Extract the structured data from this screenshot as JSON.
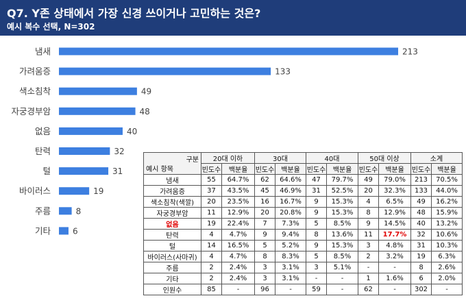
{
  "header": {
    "title": "Q7. Y존 상태에서 가장 신경 쓰이거나 고민하는 것은?",
    "subtitle": "예시 복수 선택, N=302"
  },
  "chart_data": {
    "type": "bar",
    "orientation": "horizontal",
    "categories": [
      "냄새",
      "가려움증",
      "색소침착",
      "자궁경부암",
      "없음",
      "탄력",
      "털",
      "바이러스",
      "주름",
      "기타"
    ],
    "values": [
      213,
      133,
      49,
      48,
      40,
      32,
      31,
      19,
      8,
      6
    ],
    "bar_color": "#3d7fe0",
    "xlim": [
      0,
      213
    ],
    "title": "",
    "xlabel": "",
    "ylabel": ""
  },
  "table": {
    "corner_top": "구분",
    "corner_bottom": "예시 항목",
    "groups": [
      "20대 이하",
      "30대",
      "40대",
      "50대 이상",
      "소계"
    ],
    "subheaders": [
      "빈도수",
      "백분율",
      "빈도수",
      "백분율",
      "빈도수",
      "백분율",
      "빈도수",
      "백분율",
      "빈도수",
      "백분율"
    ],
    "rows": [
      {
        "label": "냄새",
        "cells": [
          "55",
          "64.7%",
          "62",
          "64.6%",
          "47",
          "79.7%",
          "49",
          "79.0%",
          "213",
          "70.5%"
        ]
      },
      {
        "label": "가려움증",
        "cells": [
          "37",
          "43.5%",
          "45",
          "46.9%",
          "31",
          "52.5%",
          "20",
          "32.3%",
          "133",
          "44.0%"
        ]
      },
      {
        "label": "색소침착(색깔)",
        "cells": [
          "20",
          "23.5%",
          "16",
          "16.7%",
          "9",
          "15.3%",
          "4",
          "6.5%",
          "49",
          "16.2%"
        ]
      },
      {
        "label": "자궁경부암",
        "cells": [
          "11",
          "12.9%",
          "20",
          "20.8%",
          "9",
          "15.3%",
          "8",
          "12.9%",
          "48",
          "15.9%"
        ]
      },
      {
        "label": "없음",
        "cells": [
          "19",
          "22.4%",
          "7",
          "7.3%",
          "5",
          "8.5%",
          "9",
          "14.5%",
          "40",
          "13.2%"
        ]
      },
      {
        "label": "탄력",
        "cells": [
          "4",
          "4.7%",
          "9",
          "9.4%",
          "8",
          "13.6%",
          "11",
          "17.7%",
          "32",
          "10.6%"
        ]
      },
      {
        "label": "털",
        "cells": [
          "14",
          "16.5%",
          "5",
          "5.2%",
          "9",
          "15.3%",
          "3",
          "4.8%",
          "31",
          "10.3%"
        ]
      },
      {
        "label": "바이러스(사마귀)",
        "cells": [
          "4",
          "4.7%",
          "8",
          "8.3%",
          "5",
          "8.5%",
          "2",
          "3.2%",
          "19",
          "6.3%"
        ]
      },
      {
        "label": "주름",
        "cells": [
          "2",
          "2.4%",
          "3",
          "3.1%",
          "3",
          "5.1%",
          "-",
          "-",
          "8",
          "2.6%"
        ]
      },
      {
        "label": "기타",
        "cells": [
          "2",
          "2.4%",
          "3",
          "3.1%",
          "-",
          "-",
          "1",
          "1.6%",
          "6",
          "2.0%"
        ]
      },
      {
        "label": "인원수",
        "cells": [
          "85",
          "-",
          "96",
          "-",
          "59",
          "-",
          "62",
          "-",
          "302",
          "-"
        ]
      }
    ],
    "highlight_color": "#e00000"
  }
}
